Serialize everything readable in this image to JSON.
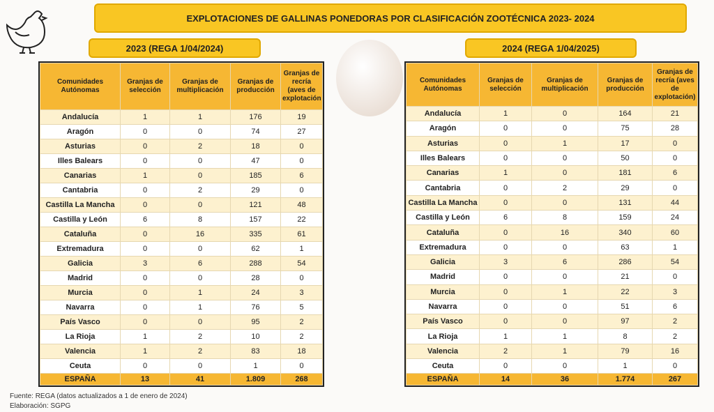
{
  "title": "EXPLOTACIONES DE GALLINAS PONEDORAS POR CLASIFICACIÓN ZOOTÉCNICA 2023- 2024",
  "tables": [
    {
      "heading": "2023 (REGA 1/04/2024)",
      "columns": [
        "Comunidades Autónomas",
        "Granjas de selección",
        "Granjas de multiplicación",
        "Granjas de producción",
        "Granjas de recría (aves de explotación"
      ],
      "rows": [
        [
          "Andalucía",
          1,
          1,
          176,
          19
        ],
        [
          "Aragón",
          0,
          0,
          74,
          27
        ],
        [
          "Asturias",
          0,
          2,
          18,
          0
        ],
        [
          "Illes Balears",
          0,
          0,
          47,
          0
        ],
        [
          "Canarias",
          1,
          0,
          185,
          6
        ],
        [
          "Cantabria",
          0,
          2,
          29,
          0
        ],
        [
          "Castilla La Mancha",
          0,
          0,
          121,
          48
        ],
        [
          "Castilla y León",
          6,
          8,
          157,
          22
        ],
        [
          "Cataluña",
          0,
          16,
          335,
          61
        ],
        [
          "Extremadura",
          0,
          0,
          62,
          1
        ],
        [
          "Galicia",
          3,
          6,
          288,
          54
        ],
        [
          "Madrid",
          0,
          0,
          28,
          0
        ],
        [
          "Murcia",
          0,
          1,
          24,
          3
        ],
        [
          "Navarra",
          0,
          1,
          76,
          5
        ],
        [
          "País Vasco",
          0,
          0,
          95,
          2
        ],
        [
          "La Rioja",
          1,
          2,
          10,
          2
        ],
        [
          "Valencia",
          1,
          2,
          83,
          18
        ],
        [
          "Ceuta",
          0,
          0,
          1,
          0
        ]
      ],
      "total": [
        "ESPAÑA",
        13,
        41,
        "1.809",
        268
      ]
    },
    {
      "heading": "2024 (REGA 1/04/2025)",
      "columns": [
        "Comunidades Autónomas",
        "Granjas de selección",
        "Granjas de multiplicación",
        "Granjas de producción",
        "Granjas de recría (aves de explotación)"
      ],
      "rows": [
        [
          "Andalucía",
          1,
          0,
          164,
          21
        ],
        [
          "Aragón",
          0,
          0,
          75,
          28
        ],
        [
          "Asturias",
          0,
          1,
          17,
          0
        ],
        [
          "Illes Balears",
          0,
          0,
          50,
          0
        ],
        [
          "Canarias",
          1,
          0,
          181,
          6
        ],
        [
          "Cantabria",
          0,
          2,
          29,
          0
        ],
        [
          "Castilla La Mancha",
          0,
          0,
          131,
          44
        ],
        [
          "Castilla y León",
          6,
          8,
          159,
          24
        ],
        [
          "Cataluña",
          0,
          16,
          340,
          60
        ],
        [
          "Extremadura",
          0,
          0,
          63,
          1
        ],
        [
          "Galicia",
          3,
          6,
          286,
          54
        ],
        [
          "Madrid",
          0,
          0,
          21,
          0
        ],
        [
          "Murcia",
          0,
          1,
          22,
          3
        ],
        [
          "Navarra",
          0,
          0,
          51,
          6
        ],
        [
          "País Vasco",
          0,
          0,
          97,
          2
        ],
        [
          "La Rioja",
          1,
          1,
          8,
          2
        ],
        [
          "Valencia",
          2,
          1,
          79,
          16
        ],
        [
          "Ceuta",
          0,
          0,
          1,
          0
        ]
      ],
      "total": [
        "ESPAÑA",
        14,
        36,
        "1.774",
        267
      ]
    }
  ],
  "footer": [
    "Fuente: REGA  (datos actualizados a 1 de enero de 2024)",
    "Elaboración: SGPG"
  ]
}
